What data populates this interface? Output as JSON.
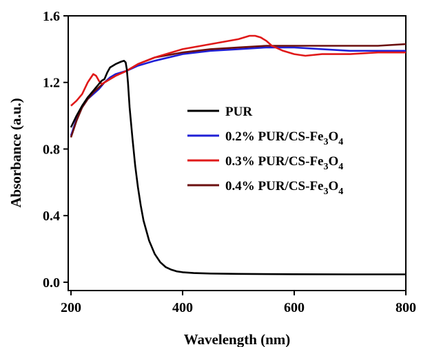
{
  "chart_data": {
    "type": "line",
    "title": "",
    "xlabel": "Wavelength (nm)",
    "ylabel": "Absorbance (a.u.)",
    "xlim": [
      195,
      800
    ],
    "ylim": [
      -0.05,
      1.6
    ],
    "xticks": [
      200,
      400,
      600,
      800
    ],
    "xtick_labels": [
      "200",
      "400",
      "600",
      "800"
    ],
    "yticks": [
      0.0,
      0.4,
      0.8,
      1.2,
      1.6
    ],
    "ytick_labels": [
      "0.0",
      "0.4",
      "0.8",
      "1.2",
      "1.6"
    ],
    "grid": false,
    "legend_position": "center-right",
    "series": [
      {
        "name": "PUR",
        "legend": {
          "main": "PUR",
          "sub1": "",
          "mid": "",
          "sub2": ""
        },
        "color": "#000000",
        "x": [
          200,
          210,
          220,
          230,
          240,
          250,
          255,
          260,
          265,
          270,
          280,
          290,
          295,
          298,
          300,
          302,
          305,
          310,
          315,
          320,
          325,
          330,
          340,
          350,
          360,
          370,
          380,
          390,
          400,
          420,
          450,
          500,
          600,
          700,
          800
        ],
        "y": [
          0.93,
          1.0,
          1.06,
          1.11,
          1.15,
          1.19,
          1.21,
          1.22,
          1.26,
          1.29,
          1.31,
          1.325,
          1.33,
          1.32,
          1.28,
          1.2,
          1.05,
          0.87,
          0.7,
          0.57,
          0.46,
          0.37,
          0.25,
          0.17,
          0.12,
          0.09,
          0.075,
          0.065,
          0.06,
          0.055,
          0.052,
          0.05,
          0.048,
          0.047,
          0.047
        ]
      },
      {
        "name": "0.2% PUR/CS-Fe3O4",
        "legend": {
          "main": "0.2% PUR/CS-Fe",
          "sub1": "3",
          "mid": "O",
          "sub2": "4"
        },
        "color": "#1f1fd6",
        "x": [
          200,
          210,
          220,
          230,
          240,
          250,
          260,
          270,
          280,
          300,
          320,
          350,
          400,
          450,
          500,
          550,
          600,
          650,
          700,
          750,
          800
        ],
        "y": [
          0.88,
          0.98,
          1.05,
          1.1,
          1.13,
          1.16,
          1.2,
          1.23,
          1.25,
          1.27,
          1.3,
          1.33,
          1.37,
          1.39,
          1.4,
          1.41,
          1.41,
          1.4,
          1.39,
          1.39,
          1.39
        ]
      },
      {
        "name": "0.3% PUR/CS-Fe3O4",
        "legend": {
          "main": "0.3% PUR/CS-Fe",
          "sub1": "3",
          "mid": "O",
          "sub2": "4"
        },
        "color": "#e01919",
        "x": [
          200,
          210,
          220,
          230,
          240,
          245,
          250,
          255,
          260,
          270,
          280,
          300,
          320,
          350,
          400,
          450,
          500,
          520,
          530,
          540,
          550,
          560,
          580,
          600,
          620,
          650,
          700,
          750,
          800
        ],
        "y": [
          1.06,
          1.09,
          1.13,
          1.2,
          1.25,
          1.24,
          1.21,
          1.19,
          1.2,
          1.22,
          1.24,
          1.27,
          1.31,
          1.35,
          1.4,
          1.43,
          1.46,
          1.48,
          1.48,
          1.47,
          1.45,
          1.42,
          1.39,
          1.37,
          1.36,
          1.37,
          1.37,
          1.38,
          1.38
        ]
      },
      {
        "name": "0.4% PUR/CS-Fe3O4",
        "legend": {
          "main": "0.4% PUR/CS-Fe",
          "sub1": "3",
          "mid": "O",
          "sub2": "4"
        },
        "color": "#6b0f0f",
        "x": [
          200,
          210,
          220,
          230,
          240,
          250,
          260,
          270,
          280,
          300,
          320,
          350,
          400,
          450,
          500,
          550,
          600,
          650,
          700,
          750,
          800
        ],
        "y": [
          0.87,
          0.97,
          1.05,
          1.1,
          1.14,
          1.17,
          1.2,
          1.22,
          1.24,
          1.27,
          1.31,
          1.35,
          1.38,
          1.4,
          1.41,
          1.42,
          1.42,
          1.42,
          1.42,
          1.42,
          1.43
        ]
      }
    ]
  }
}
